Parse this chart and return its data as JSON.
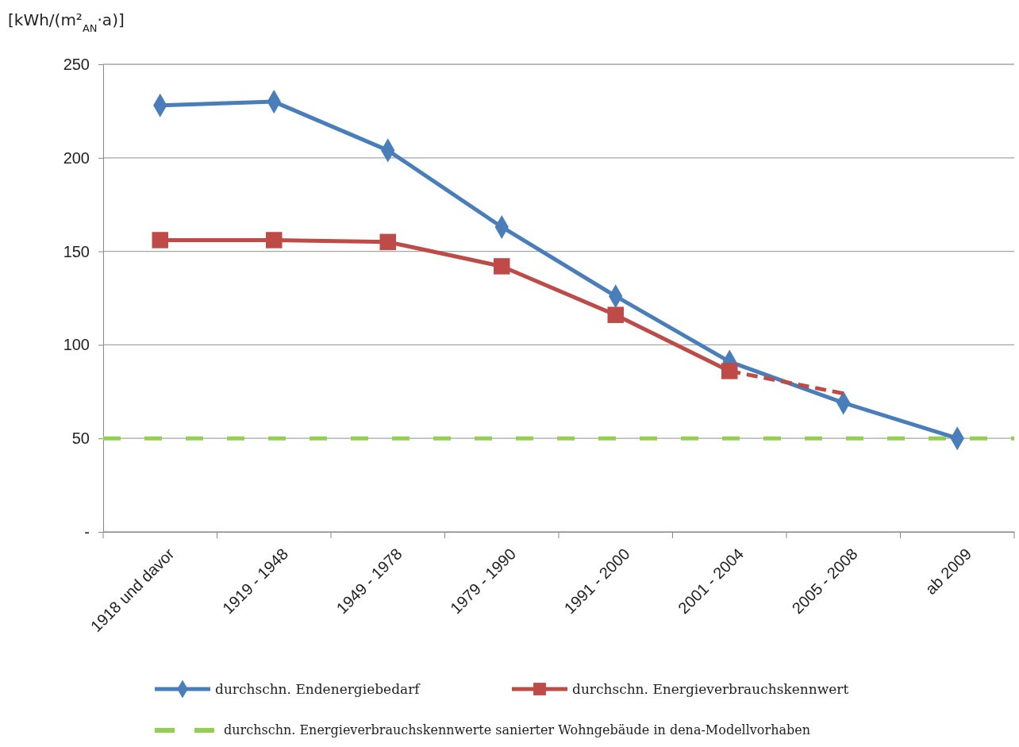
{
  "chart_data": {
    "type": "line",
    "ylabel": "[kWh/(m²$_{AN}$·a)]",
    "categories": [
      "1918 und davor",
      "1919 - 1948",
      "1949 - 1978",
      "1979 - 1990",
      "1991 - 2000",
      "2001 - 2004",
      "2005 - 2008",
      "ab 2009"
    ],
    "series": [
      {
        "name": "durchschn. Endenergiebedarf",
        "color": "#4a7ebb",
        "marker": "diamond",
        "line_style": "solid",
        "values": [
          228,
          230,
          204,
          163,
          126,
          91,
          69,
          50
        ]
      },
      {
        "name": "durchschn. Energieverbrauchskennwert",
        "color": "#be4b48",
        "marker": "square",
        "line_style": "solid",
        "values": [
          156,
          156,
          155,
          142,
          116,
          86,
          null,
          null
        ]
      },
      {
        "color": "#be4b48",
        "line_style": "dashed",
        "values": [
          null,
          null,
          null,
          null,
          null,
          86,
          74,
          null
        ]
      }
    ],
    "ref_lines": [
      {
        "axis": "y",
        "value": 50,
        "label": "durchschn. Energieverbrauchskennwerte sanierter Wohngebäude in dena-Modellvorhaben",
        "color": "#92d050",
        "line_style": "dashed"
      }
    ],
    "ylim": [
      0,
      250
    ],
    "yticks": [
      {
        "value": 0,
        "label": "-"
      },
      50,
      100,
      150,
      200,
      250
    ],
    "grid": "y",
    "legend": "bottom"
  }
}
